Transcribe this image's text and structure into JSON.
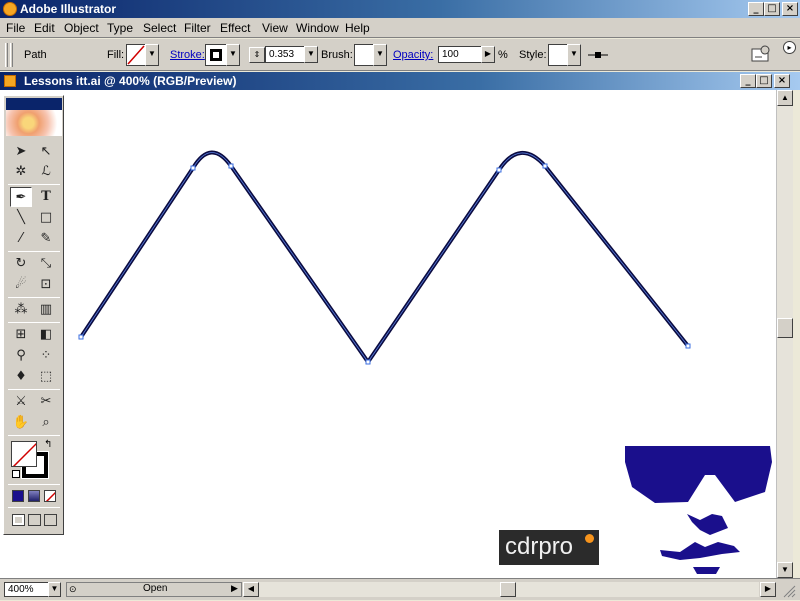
{
  "app": {
    "title": "Adobe Illustrator"
  },
  "menu": [
    "File",
    "Edit",
    "Object",
    "Type",
    "Select",
    "Filter",
    "Effect",
    "View",
    "Window",
    "Help"
  ],
  "control": {
    "selection": "Path",
    "fill_label": "Fill:",
    "stroke_label": "Stroke:",
    "stroke_weight": "0.353",
    "brush_label": "Brush:",
    "opacity_label": "Opacity:",
    "opacity_value": "100",
    "opacity_unit": "%",
    "style_label": "Style:"
  },
  "document": {
    "title": "Lessons itt.ai @ 400% (RGB/Preview)"
  },
  "status": {
    "zoom": "400%",
    "mode": "Open"
  },
  "watermark": {
    "text": "cdrpro"
  },
  "colors": {
    "titlebar": "#0a246a",
    "path": "#0b0b40",
    "anchor": "#3a6ee0",
    "mascot": "#1a0f8c"
  },
  "tools": [
    "selection-tool",
    "direct-selection-tool",
    "magic-wand-tool",
    "lasso-tool",
    "pen-tool",
    "type-tool",
    "line-segment-tool",
    "rectangle-tool",
    "paintbrush-tool",
    "pencil-tool",
    "rotate-tool",
    "scale-tool",
    "warp-tool",
    "free-transform-tool",
    "symbol-sprayer-tool",
    "column-graph-tool",
    "mesh-tool",
    "gradient-tool",
    "eyedropper-tool",
    "blend-tool",
    "live-paint-bucket-tool",
    "live-paint-selection-tool",
    "slice-tool",
    "scissors-tool",
    "hand-tool",
    "zoom-tool"
  ]
}
